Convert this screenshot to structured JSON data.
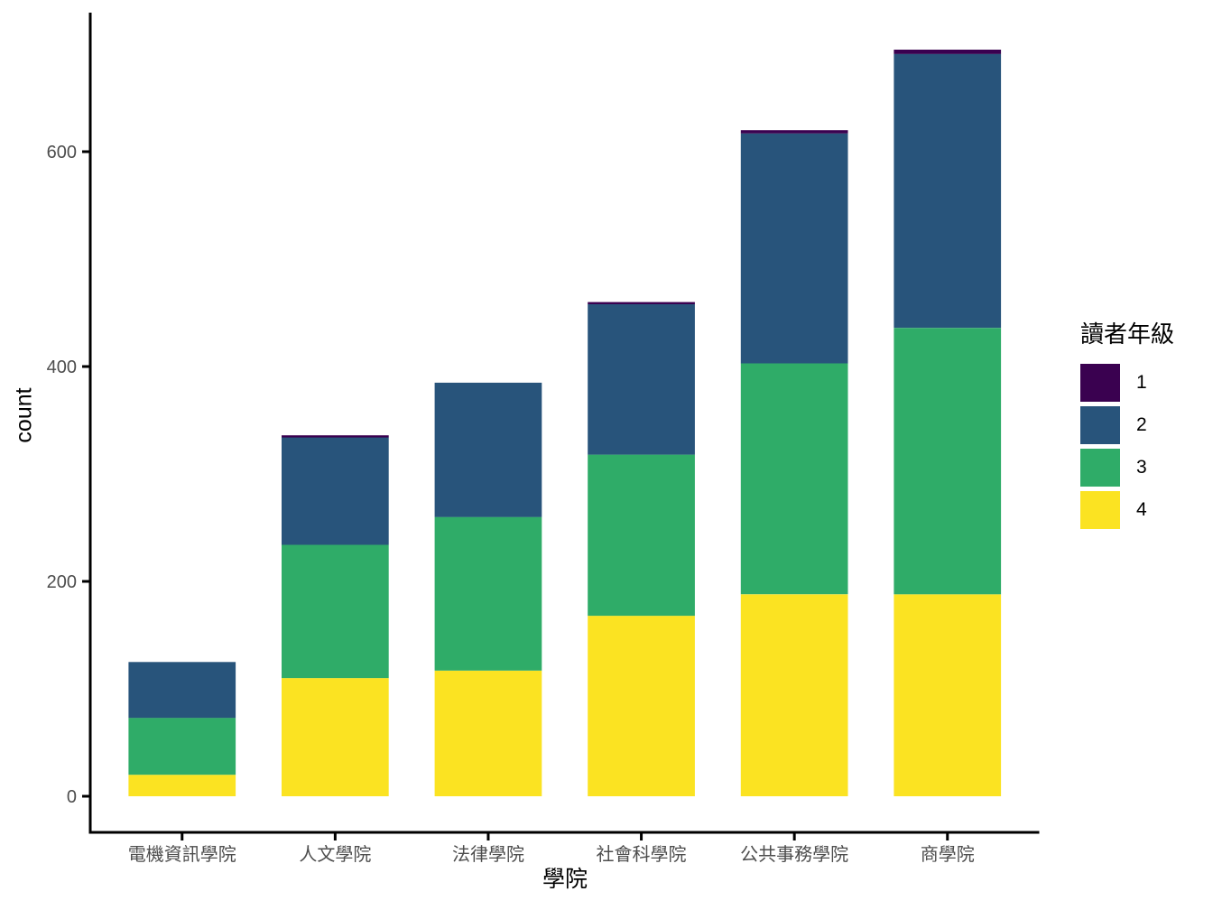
{
  "chart_data": {
    "type": "bar",
    "stacked": true,
    "xlabel": "學院",
    "ylabel": "count",
    "categories": [
      "電機資訊學院",
      "人文學院",
      "法律學院",
      "社會科學院",
      "公共事務學院",
      "商學院"
    ],
    "series": [
      {
        "name": "4",
        "color": "#FBE322",
        "values": [
          20,
          110,
          117,
          168,
          188,
          188
        ]
      },
      {
        "name": "3",
        "color": "#2FAC68",
        "values": [
          53,
          124,
          143,
          150,
          215,
          248
        ]
      },
      {
        "name": "2",
        "color": "#28547B",
        "values": [
          52,
          100,
          125,
          140,
          214,
          255
        ]
      },
      {
        "name": "1",
        "color": "#3A0150",
        "values": [
          0,
          2,
          0,
          2,
          3,
          4
        ]
      }
    ],
    "totals": [
      125,
      336,
      385,
      460,
      620,
      695
    ],
    "y_ticks": [
      0,
      200,
      400,
      600
    ],
    "ylim": [
      -34,
      729
    ],
    "grid": false,
    "legend": {
      "title": "讀者年級",
      "position": "right",
      "entries": [
        {
          "label": "1",
          "color": "#3A0150"
        },
        {
          "label": "2",
          "color": "#28547B"
        },
        {
          "label": "3",
          "color": "#2FAC68"
        },
        {
          "label": "4",
          "color": "#FBE322"
        }
      ]
    },
    "axis_text_color": "#4D4D4D",
    "axis_line_color": "#000000"
  }
}
